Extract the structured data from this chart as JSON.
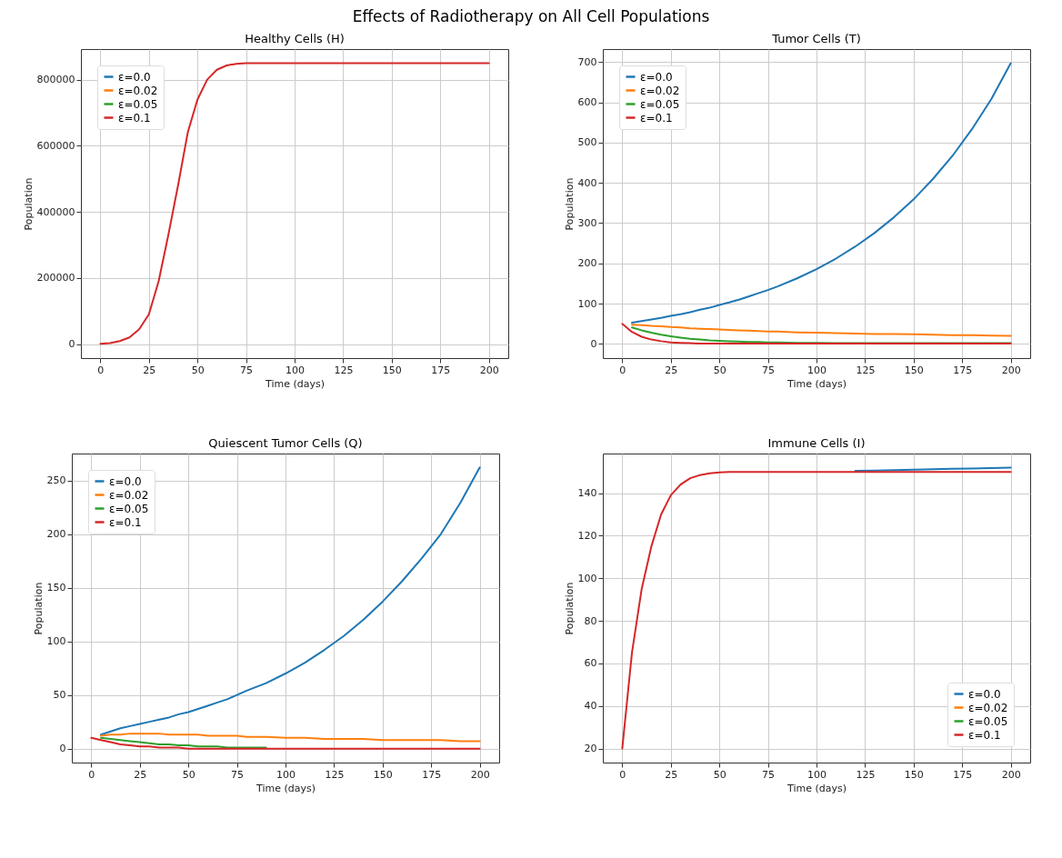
{
  "chart_data": [
    {
      "type": "line",
      "title": "Healthy Cells (H)",
      "annotations": [
        "Effects of Radiotherapy on All Cell Populations"
      ],
      "xlabel": "Time (days)",
      "ylabel": "Population",
      "xlim": [
        -10,
        210
      ],
      "xticks": [
        0,
        25,
        50,
        75,
        100,
        125,
        150,
        175,
        200
      ],
      "ylim": [
        -42500,
        892500
      ],
      "yticks": [
        0,
        200000,
        400000,
        600000,
        800000
      ],
      "grid": true,
      "legend": "top left",
      "x": [
        0,
        5,
        10,
        15,
        20,
        25,
        30,
        35,
        40,
        45,
        50,
        55,
        60,
        65,
        70,
        75,
        80,
        90,
        100,
        110,
        120,
        130,
        140,
        150,
        160,
        170,
        180,
        190,
        200
      ],
      "series": [
        {
          "name": "ε=0.0",
          "color": "#1f77b4",
          "values": [
            null,
            null,
            null,
            null,
            null,
            null,
            null,
            null,
            null,
            null,
            null,
            null,
            null,
            null,
            null,
            null,
            null,
            null,
            null,
            null,
            null,
            null,
            null,
            null,
            null,
            null,
            null,
            null,
            null
          ]
        },
        {
          "name": "ε=0.02",
          "color": "#ff7f0e",
          "values": [
            null,
            null,
            null,
            null,
            null,
            null,
            null,
            null,
            null,
            null,
            null,
            null,
            null,
            null,
            null,
            null,
            null,
            null,
            null,
            null,
            null,
            null,
            null,
            null,
            null,
            null,
            null,
            null,
            null
          ]
        },
        {
          "name": "ε=0.05",
          "color": "#2ca02c",
          "values": [
            null,
            null,
            null,
            null,
            null,
            null,
            null,
            null,
            null,
            null,
            null,
            null,
            null,
            null,
            null,
            null,
            null,
            null,
            null,
            null,
            null,
            null,
            null,
            null,
            null,
            null,
            null,
            null,
            null
          ]
        },
        {
          "name": "ε=0.1",
          "color": "#d62728",
          "values": [
            1000,
            3000,
            9000,
            20000,
            45000,
            90000,
            190000,
            330000,
            480000,
            640000,
            740000,
            800000,
            830000,
            843000,
            848000,
            850000,
            850000,
            850000,
            850000,
            850000,
            850000,
            850000,
            850000,
            850000,
            850000,
            850000,
            850000,
            850000,
            850000
          ]
        }
      ]
    },
    {
      "type": "line",
      "title": "Tumor Cells (T)",
      "xlabel": "Time (days)",
      "ylabel": "Population",
      "xlim": [
        -10,
        210
      ],
      "xticks": [
        0,
        25,
        50,
        75,
        100,
        125,
        150,
        175,
        200
      ],
      "ylim": [
        -35,
        732
      ],
      "yticks": [
        0,
        100,
        200,
        300,
        400,
        500,
        600,
        700
      ],
      "grid": true,
      "legend": "top left",
      "x": [
        0,
        5,
        10,
        15,
        20,
        25,
        30,
        35,
        40,
        45,
        50,
        55,
        60,
        65,
        70,
        75,
        80,
        90,
        100,
        110,
        120,
        130,
        140,
        150,
        160,
        170,
        180,
        190,
        200
      ],
      "series": [
        {
          "name": "ε=0.0",
          "color": "#1f77b4",
          "values": [
            null,
            53,
            57,
            61,
            65,
            70,
            74,
            79,
            85,
            90,
            97,
            103,
            110,
            118,
            126,
            134,
            143,
            163,
            186,
            212,
            242,
            276,
            315,
            359,
            410,
            467,
            533,
            608,
            697
          ]
        },
        {
          "name": "ε=0.02",
          "color": "#ff7f0e",
          "values": [
            null,
            48,
            47,
            45,
            44,
            42,
            41,
            39,
            38,
            37,
            36,
            35,
            34,
            33,
            32,
            31,
            31,
            29,
            28,
            27,
            26,
            25,
            25,
            24,
            23,
            22,
            22,
            21,
            20
          ]
        },
        {
          "name": "ε=0.05",
          "color": "#2ca02c",
          "values": [
            null,
            41,
            34,
            28,
            23,
            19,
            16,
            13,
            11,
            9,
            8,
            7,
            6,
            5,
            5,
            4,
            4,
            3,
            3,
            2,
            2,
            2,
            2,
            2,
            2,
            2,
            2,
            2,
            2
          ]
        },
        {
          "name": "ε=0.1",
          "color": "#d62728",
          "values": [
            50,
            30,
            18,
            11,
            7,
            4,
            3,
            2,
            1,
            1,
            1,
            1,
            1,
            1,
            1,
            1,
            1,
            1,
            1,
            1,
            1,
            1,
            1,
            1,
            1,
            1,
            1,
            1,
            1
          ]
        }
      ]
    },
    {
      "type": "line",
      "title": "Quiescent Tumor Cells (Q)",
      "xlabel": "Time (days)",
      "ylabel": "Population",
      "xlim": [
        -10,
        210
      ],
      "xticks": [
        0,
        25,
        50,
        75,
        100,
        125,
        150,
        175,
        200
      ],
      "ylim": [
        -13,
        275
      ],
      "yticks": [
        0,
        50,
        100,
        150,
        200,
        250
      ],
      "grid": true,
      "legend": "top left",
      "x": [
        0,
        5,
        10,
        15,
        20,
        25,
        30,
        35,
        40,
        45,
        50,
        55,
        60,
        65,
        70,
        75,
        80,
        90,
        100,
        110,
        120,
        130,
        140,
        150,
        160,
        170,
        180,
        190,
        200
      ],
      "series": [
        {
          "name": "ε=0.0",
          "color": "#1f77b4",
          "values": [
            null,
            13,
            16,
            19,
            21,
            23,
            25,
            27,
            29,
            32,
            34,
            37,
            40,
            43,
            46,
            50,
            54,
            61,
            70,
            80,
            92,
            105,
            120,
            137,
            156,
            177,
            200,
            229,
            262
          ]
        },
        {
          "name": "ε=0.02",
          "color": "#ff7f0e",
          "values": [
            null,
            12,
            13,
            13,
            14,
            14,
            14,
            14,
            13,
            13,
            13,
            13,
            12,
            12,
            12,
            12,
            11,
            11,
            10,
            10,
            9,
            9,
            9,
            8,
            8,
            8,
            8,
            7,
            7
          ]
        },
        {
          "name": "ε=0.05",
          "color": "#2ca02c",
          "values": [
            null,
            10,
            9,
            8,
            7,
            6,
            5,
            4,
            4,
            3,
            3,
            2,
            2,
            2,
            1,
            1,
            1,
            1,
            null,
            null,
            null,
            null,
            null,
            null,
            null,
            null,
            null,
            null,
            null
          ]
        },
        {
          "name": "ε=0.1",
          "color": "#d62728",
          "values": [
            10,
            8,
            6,
            4,
            3,
            2,
            2,
            1,
            1,
            1,
            0,
            0,
            0,
            0,
            0,
            0,
            0,
            0,
            0,
            0,
            0,
            0,
            0,
            0,
            0,
            0,
            0,
            0,
            0
          ]
        }
      ]
    },
    {
      "type": "line",
      "title": "Immune Cells (I)",
      "xlabel": "Time (days)",
      "ylabel": "Population",
      "xlim": [
        -10,
        210
      ],
      "xticks": [
        0,
        25,
        50,
        75,
        100,
        125,
        150,
        175,
        200
      ],
      "ylim": [
        13.4,
        158.6
      ],
      "yticks": [
        20,
        40,
        60,
        80,
        100,
        120,
        140
      ],
      "grid": true,
      "legend": "bottom right",
      "x": [
        0,
        5,
        10,
        15,
        20,
        25,
        30,
        35,
        40,
        45,
        50,
        55,
        60,
        65,
        70,
        75,
        80,
        90,
        100,
        110,
        120,
        130,
        140,
        150,
        160,
        170,
        180,
        190,
        200
      ],
      "series": [
        {
          "name": "ε=0.0",
          "color": "#1f77b4",
          "values": [
            null,
            null,
            null,
            null,
            null,
            null,
            null,
            null,
            null,
            null,
            null,
            null,
            null,
            null,
            null,
            null,
            null,
            null,
            null,
            null,
            150.5,
            150.6,
            150.8,
            151,
            151.2,
            151.4,
            151.6,
            151.8,
            152
          ]
        },
        {
          "name": "ε=0.02",
          "color": "#ff7f0e",
          "values": [
            null,
            null,
            null,
            null,
            null,
            null,
            null,
            null,
            null,
            null,
            null,
            null,
            null,
            null,
            null,
            null,
            null,
            null,
            null,
            null,
            null,
            null,
            null,
            null,
            null,
            null,
            null,
            null,
            null
          ]
        },
        {
          "name": "ε=0.05",
          "color": "#2ca02c",
          "values": [
            null,
            null,
            null,
            null,
            null,
            null,
            null,
            null,
            null,
            null,
            null,
            null,
            null,
            null,
            null,
            null,
            null,
            null,
            null,
            null,
            null,
            null,
            null,
            null,
            null,
            null,
            null,
            null,
            null
          ]
        },
        {
          "name": "ε=0.1",
          "color": "#d62728",
          "values": [
            20,
            65,
            95,
            115,
            130,
            139,
            144,
            147,
            148.5,
            149.3,
            149.7,
            150,
            150,
            150,
            150,
            150,
            150,
            150,
            150,
            150,
            150,
            150,
            150,
            150,
            150,
            150,
            150,
            150,
            150
          ]
        }
      ]
    }
  ]
}
